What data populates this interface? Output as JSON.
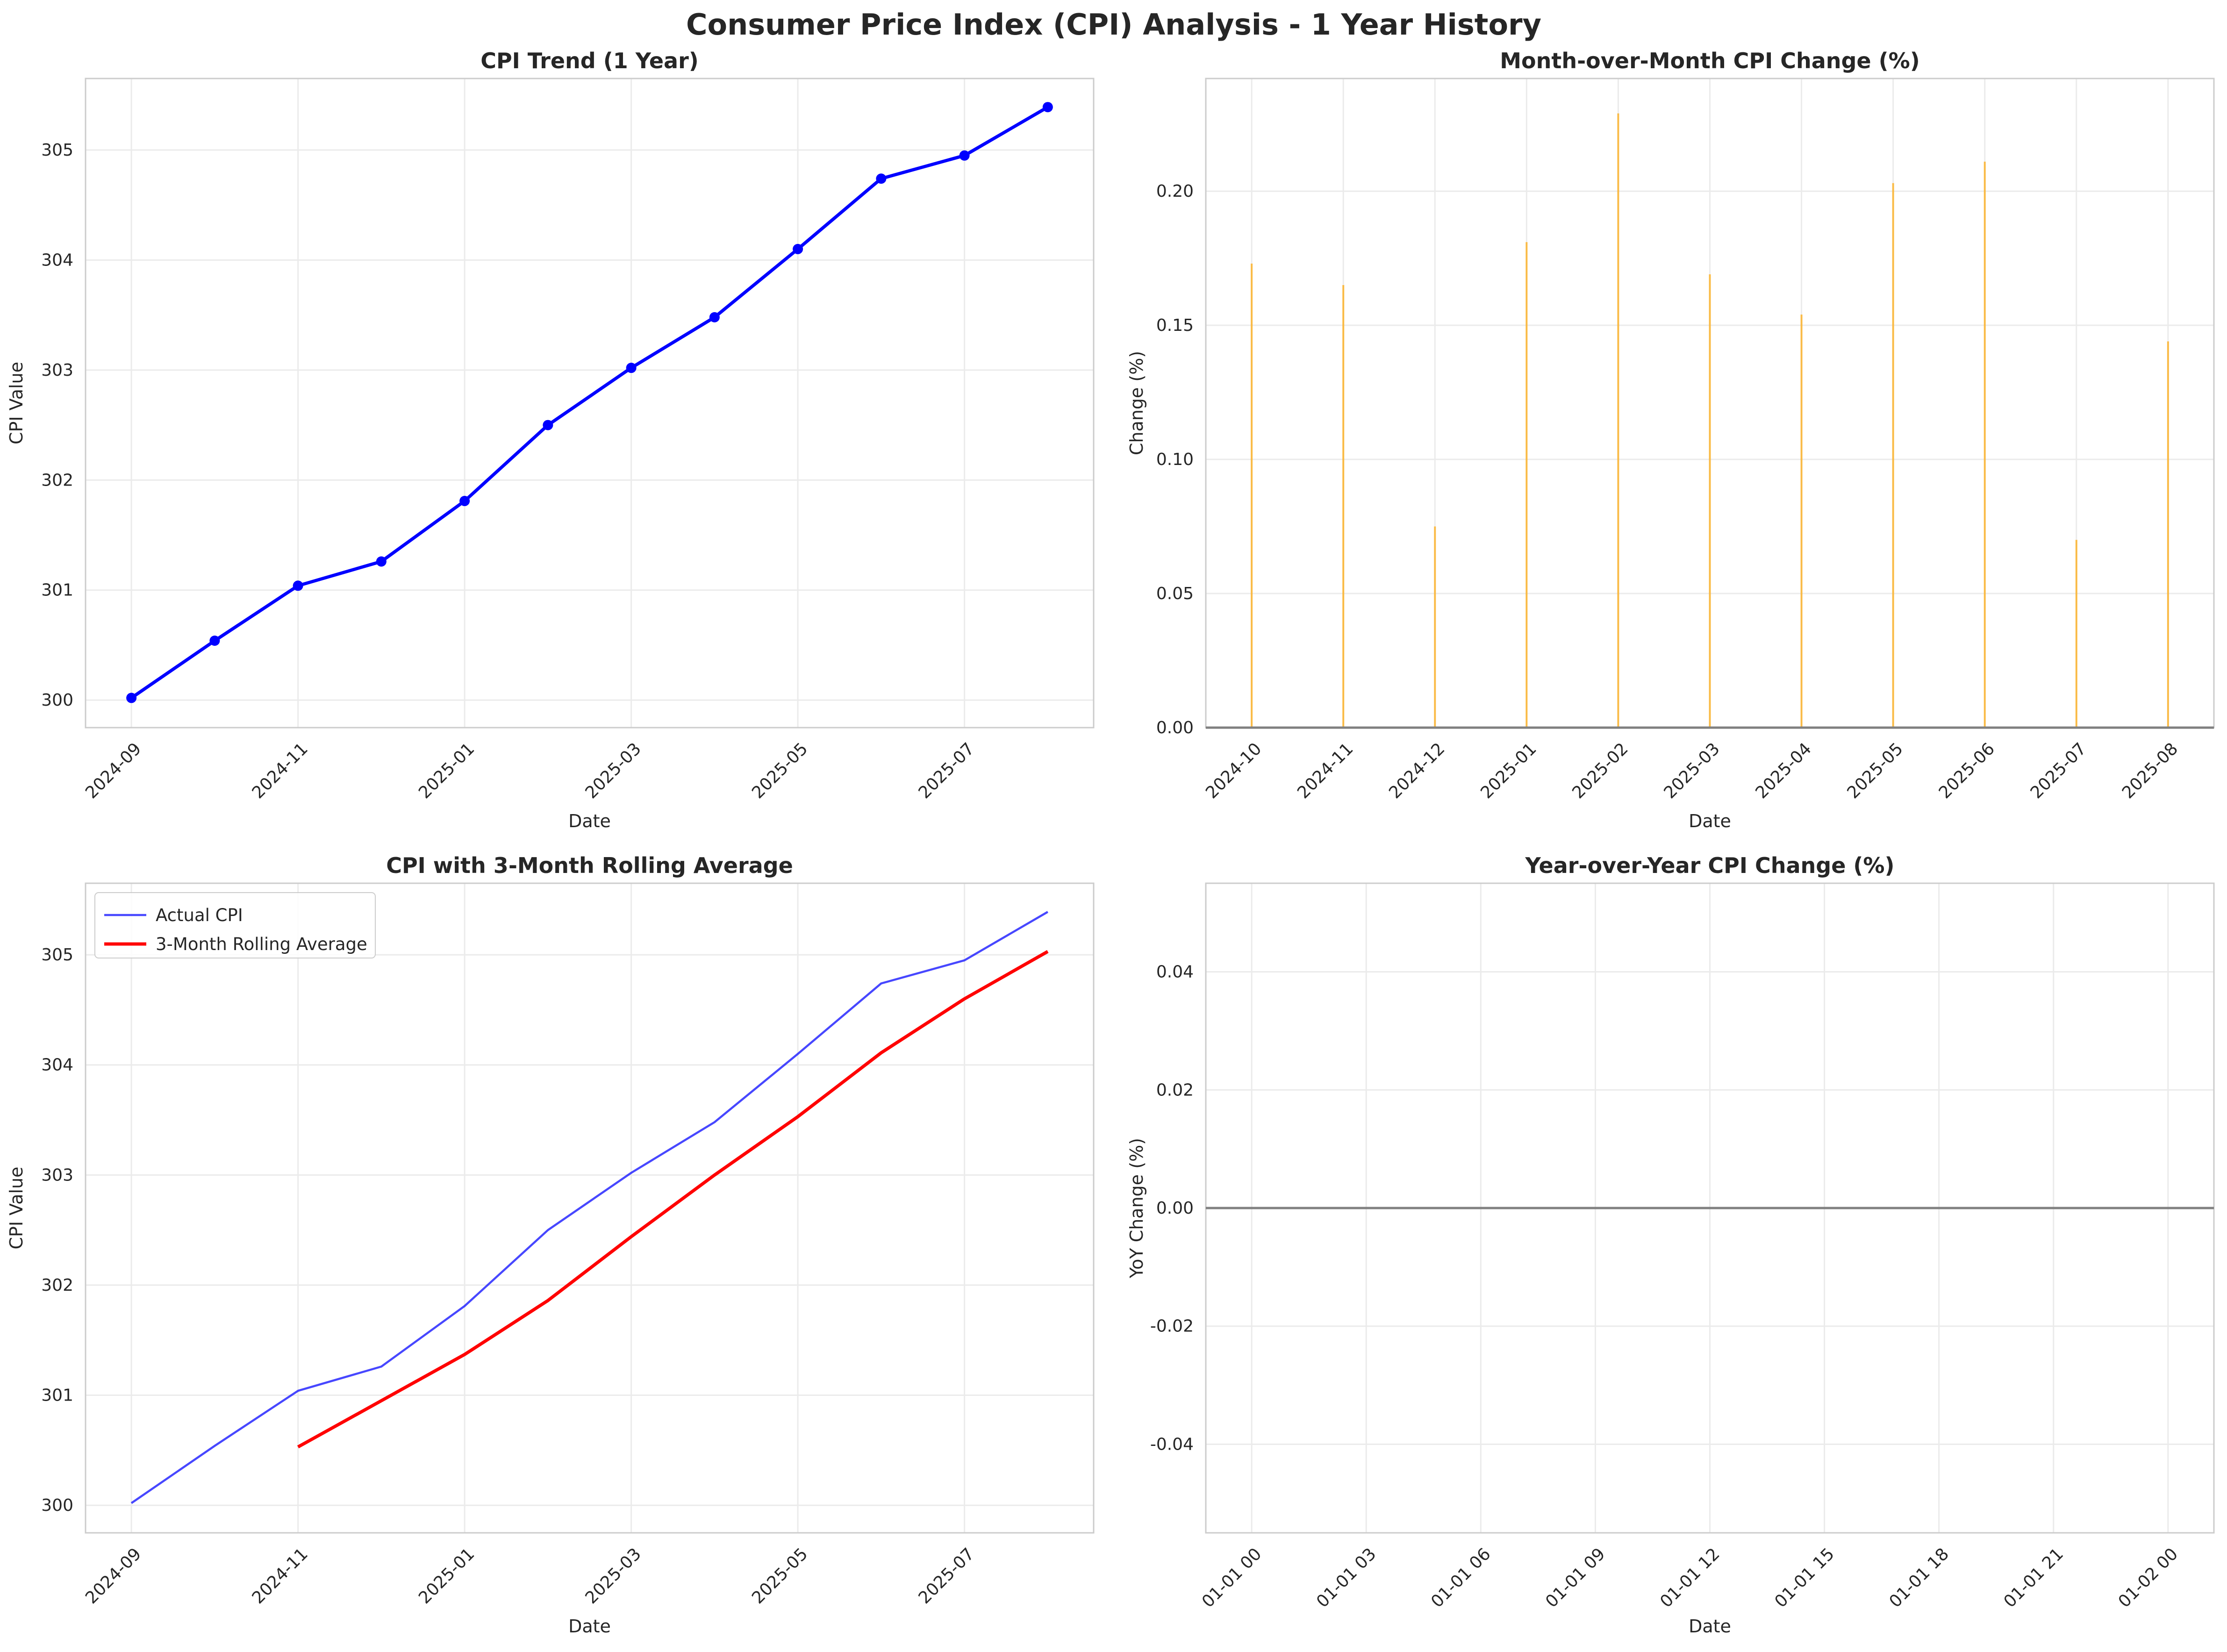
{
  "title": "Consumer Price Index (CPI) Analysis - 1 Year History",
  "chart_data": [
    {
      "id": "cpi_trend",
      "type": "line",
      "title": "CPI Trend (1 Year)",
      "xlabel": "Date",
      "ylabel": "CPI Value",
      "x_ticks": [
        "2024-09",
        "2024-11",
        "2025-01",
        "2025-03",
        "2025-05",
        "2025-07"
      ],
      "y_ticks": [
        "300",
        "301",
        "302",
        "303",
        "304",
        "305"
      ],
      "ylim": [
        299.75,
        305.65
      ],
      "grid": true,
      "x": [
        "2024-09",
        "2024-10",
        "2024-11",
        "2024-12",
        "2025-01",
        "2025-02",
        "2025-03",
        "2025-04",
        "2025-05",
        "2025-06",
        "2025-07",
        "2025-08"
      ],
      "series": [
        {
          "values": [
            300.02,
            300.54,
            301.04,
            301.26,
            301.81,
            302.5,
            303.02,
            303.48,
            304.1,
            304.74,
            304.95,
            305.39
          ],
          "color": "#0000ff",
          "markers": true
        }
      ]
    },
    {
      "id": "mom_change",
      "type": "bar",
      "title": "Month-over-Month CPI Change (%)",
      "xlabel": "Date",
      "ylabel": "Change (%)",
      "x_ticks": [
        "2024-10",
        "2024-11",
        "2024-12",
        "2025-01",
        "2025-02",
        "2025-03",
        "2025-04",
        "2025-05",
        "2025-06",
        "2025-07",
        "2025-08"
      ],
      "y_ticks": [
        "0.00",
        "0.05",
        "0.10",
        "0.15",
        "0.20"
      ],
      "ylim": [
        0,
        0.242
      ],
      "grid": true,
      "x": [
        "2024-10",
        "2024-11",
        "2024-12",
        "2025-01",
        "2025-02",
        "2025-03",
        "2025-04",
        "2025-05",
        "2025-06",
        "2025-07",
        "2025-08"
      ],
      "values": [
        0.173,
        0.165,
        0.075,
        0.181,
        0.229,
        0.169,
        0.154,
        0.203,
        0.211,
        0.07,
        0.144
      ],
      "color": "#ffa500"
    },
    {
      "id": "rolling",
      "type": "line",
      "title": "CPI with 3-Month Rolling Average",
      "xlabel": "Date",
      "ylabel": "CPI Value",
      "x_ticks": [
        "2024-09",
        "2024-11",
        "2025-01",
        "2025-03",
        "2025-05",
        "2025-07"
      ],
      "y_ticks": [
        "300",
        "301",
        "302",
        "303",
        "304",
        "305"
      ],
      "ylim": [
        299.75,
        305.65
      ],
      "grid": true,
      "legend_position": "upper-left",
      "x": [
        "2024-09",
        "2024-10",
        "2024-11",
        "2024-12",
        "2025-01",
        "2025-02",
        "2025-03",
        "2025-04",
        "2025-05",
        "2025-06",
        "2025-07",
        "2025-08"
      ],
      "series": [
        {
          "name": "Actual CPI",
          "values": [
            300.02,
            300.54,
            301.04,
            301.26,
            301.81,
            302.5,
            303.02,
            303.48,
            304.1,
            304.74,
            304.95,
            305.39
          ],
          "color": "#0000ff"
        },
        {
          "name": "3-Month Rolling Average",
          "values": [
            null,
            null,
            300.53,
            300.95,
            301.37,
            301.86,
            302.44,
            303.0,
            303.53,
            304.11,
            304.6,
            305.03
          ],
          "color": "#ff0000"
        }
      ]
    },
    {
      "id": "yoy_change",
      "type": "line",
      "title": "Year-over-Year CPI Change (%)",
      "xlabel": "Date",
      "ylabel": "YoY Change (%)",
      "x_ticks": [
        "01-01 00",
        "01-01 03",
        "01-01 06",
        "01-01 09",
        "01-01 12",
        "01-01 15",
        "01-01 18",
        "01-01 21",
        "01-02 00"
      ],
      "y_ticks": [
        "0.04",
        "0.02",
        "0.00",
        "-0.02",
        "-0.04"
      ],
      "ylim": [
        -0.055,
        0.055
      ],
      "grid": true,
      "reference_line": 0.0,
      "series": []
    }
  ]
}
